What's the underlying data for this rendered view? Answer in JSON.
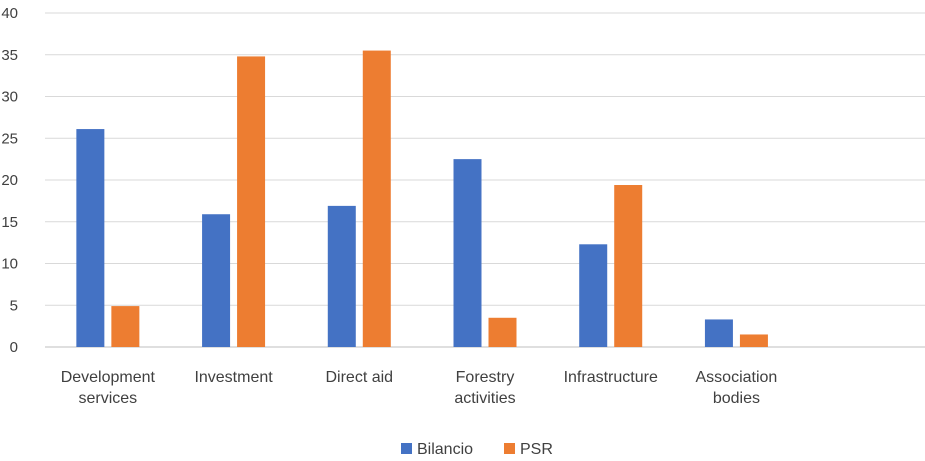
{
  "chart_data": {
    "type": "bar",
    "categories": [
      [
        "Development",
        "services"
      ],
      [
        "Investment"
      ],
      [
        "Direct aid"
      ],
      [
        "Forestry",
        "activities"
      ],
      [
        "Infrastructure"
      ],
      [
        "Association",
        "bodies"
      ]
    ],
    "series": [
      {
        "name": "Bilancio",
        "color": "#4472C4",
        "values": [
          26.1,
          15.9,
          16.9,
          22.5,
          12.3,
          3.3
        ]
      },
      {
        "name": "PSR",
        "color": "#ED7D31",
        "values": [
          4.9,
          34.8,
          35.5,
          3.5,
          19.4,
          1.5
        ]
      }
    ],
    "yticks": [
      "0",
      "5",
      "10",
      "15",
      "20",
      "25",
      "30",
      "35",
      "40"
    ],
    "ylim": [
      0,
      40
    ],
    "grid": true,
    "legend_position": "bottom",
    "title": "",
    "xlabel": "",
    "ylabel": ""
  }
}
